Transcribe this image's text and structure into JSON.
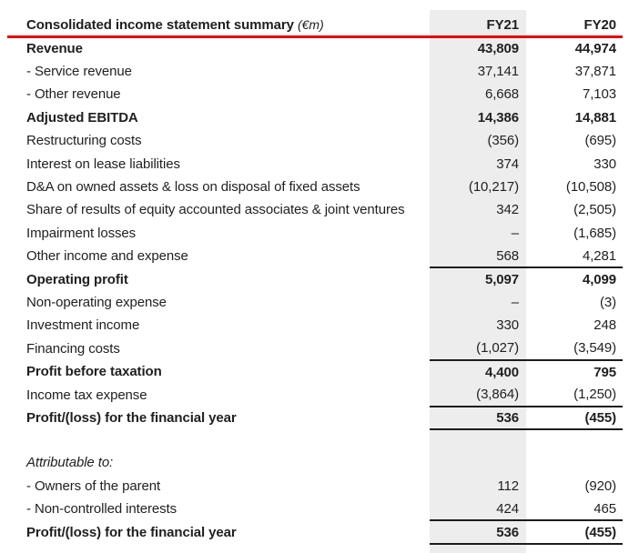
{
  "header": {
    "title": "Consolidated income statement summary",
    "unit": "(€m)",
    "columns": [
      "FY21",
      "FY20"
    ]
  },
  "rows": [
    {
      "label": "Revenue",
      "fy21": "43,809",
      "fy20": "44,974",
      "bold": true
    },
    {
      "label": "- Service revenue",
      "fy21": "37,141",
      "fy20": "37,871"
    },
    {
      "label": "- Other revenue",
      "fy21": "6,668",
      "fy20": "7,103"
    },
    {
      "label": "Adjusted EBITDA",
      "fy21": "14,386",
      "fy20": "14,881",
      "bold": true
    },
    {
      "label": "Restructuring costs",
      "fy21": "(356)",
      "fy20": "(695)"
    },
    {
      "label": "Interest on lease liabilities",
      "fy21": "374",
      "fy20": "330"
    },
    {
      "label": "D&A on owned assets & loss on disposal of fixed assets",
      "fy21": "(10,217)",
      "fy20": "(10,508)"
    },
    {
      "label": "Share of results of equity accounted associates & joint ventures",
      "fy21": "342",
      "fy20": "(2,505)"
    },
    {
      "label": "Impairment losses",
      "fy21": "–",
      "fy20": "(1,685)"
    },
    {
      "label": "Other income and expense",
      "fy21": "568",
      "fy20": "4,281",
      "rule_below": true
    },
    {
      "label": "Operating profit",
      "fy21": "5,097",
      "fy20": "4,099",
      "bold": true
    },
    {
      "label": "Non-operating expense",
      "fy21": "–",
      "fy20": "(3)"
    },
    {
      "label": "Investment income",
      "fy21": "330",
      "fy20": "248"
    },
    {
      "label": "Financing costs",
      "fy21": "(1,027)",
      "fy20": "(3,549)",
      "rule_below": true
    },
    {
      "label": "Profit before taxation",
      "fy21": "4,400",
      "fy20": "795",
      "bold": true
    },
    {
      "label": "Income tax expense",
      "fy21": "(3,864)",
      "fy20": "(1,250)",
      "rule_below": true
    },
    {
      "label": "Profit/(loss) for the financial year",
      "fy21": "536",
      "fy20": "(455)",
      "bold": true,
      "rule_below": true
    },
    {
      "spacer": true
    },
    {
      "label": "Attributable to:",
      "fy21": "",
      "fy20": "",
      "italic": true
    },
    {
      "label": "- Owners of the parent",
      "fy21": "112",
      "fy20": "(920)"
    },
    {
      "label": "- Non-controlled interests",
      "fy21": "424",
      "fy20": "465",
      "rule_below": true
    },
    {
      "label": "Profit/(loss) for the financial year",
      "fy21": "536",
      "fy20": "(455)",
      "bold": true,
      "rule_below": true
    }
  ],
  "colors": {
    "accent_red": "#e60000",
    "column_shade": "#ededed",
    "text": "#1f1f1f",
    "rule_black": "#1c1c1c"
  }
}
